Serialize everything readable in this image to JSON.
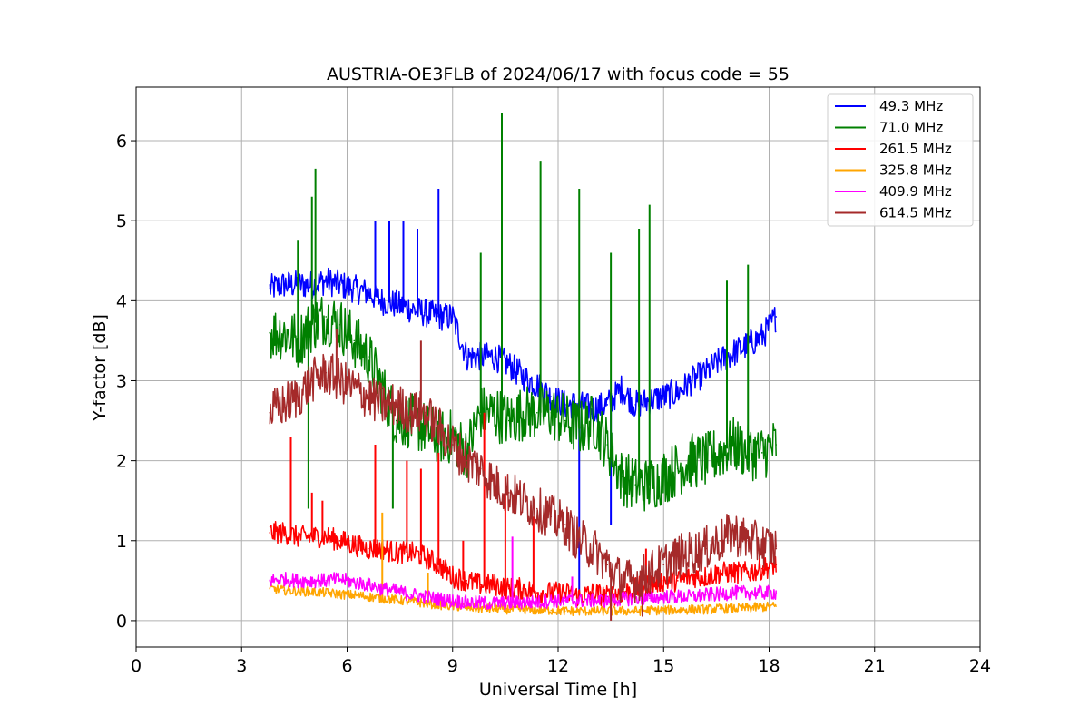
{
  "chart_data": {
    "type": "line",
    "title": "AUSTRIA-OE3FLB of 2024/06/17 with focus code = 55",
    "xlabel": "Universal Time [h]",
    "ylabel": "Y-factor [dB]",
    "xlim": [
      0,
      24
    ],
    "ylim": [
      -0.33,
      6.67
    ],
    "xticks": [
      0,
      3,
      6,
      9,
      12,
      15,
      18,
      21,
      24
    ],
    "yticks": [
      0,
      1,
      2,
      3,
      4,
      5,
      6
    ],
    "grid": true,
    "legend_position": "top-right",
    "series": [
      {
        "name": " 49.3 MHz",
        "color": "#0000ff",
        "x": [
          3.8,
          4.2,
          4.6,
          5.0,
          5.4,
          5.8,
          6.2,
          6.6,
          7.0,
          7.4,
          7.8,
          8.2,
          8.6,
          9.0,
          9.4,
          9.8,
          10.2,
          10.6,
          11.0,
          11.4,
          11.8,
          12.2,
          12.6,
          13.0,
          13.4,
          13.8,
          14.2,
          14.6,
          15.0,
          15.4,
          15.8,
          16.2,
          16.6,
          17.0,
          17.4,
          17.8,
          18.2
        ],
        "y": [
          4.15,
          4.2,
          4.2,
          4.2,
          4.25,
          4.2,
          4.15,
          4.1,
          4.0,
          3.95,
          3.9,
          3.85,
          3.8,
          3.8,
          3.3,
          3.3,
          3.3,
          3.2,
          3.05,
          2.95,
          2.8,
          2.7,
          2.7,
          2.65,
          2.7,
          2.9,
          2.7,
          2.75,
          2.8,
          2.85,
          3.0,
          3.1,
          3.25,
          3.35,
          3.45,
          3.55,
          3.8
        ],
        "spikes": [
          [
            6.8,
            5.0
          ],
          [
            7.2,
            5.0
          ],
          [
            7.6,
            5.0
          ],
          [
            8.0,
            4.9
          ],
          [
            8.6,
            5.4
          ],
          [
            12.6,
            0.3
          ],
          [
            13.5,
            1.2
          ]
        ]
      },
      {
        "name": " 71.0 MHz",
        "color": "#008000",
        "x": [
          3.8,
          4.2,
          4.6,
          5.0,
          5.4,
          5.8,
          6.2,
          6.6,
          7.0,
          7.4,
          7.8,
          8.2,
          8.6,
          9.0,
          9.4,
          9.8,
          10.2,
          10.6,
          11.0,
          11.4,
          11.8,
          12.2,
          12.6,
          13.0,
          13.4,
          13.8,
          14.2,
          14.6,
          15.0,
          15.4,
          15.8,
          16.2,
          16.6,
          17.0,
          17.4,
          17.8,
          18.2
        ],
        "y": [
          3.6,
          3.6,
          3.5,
          3.7,
          3.8,
          3.7,
          3.5,
          3.3,
          2.9,
          2.5,
          2.5,
          2.4,
          2.3,
          2.3,
          2.1,
          2.6,
          2.6,
          2.5,
          2.6,
          2.6,
          2.6,
          2.5,
          2.4,
          2.5,
          2.2,
          1.8,
          1.7,
          1.7,
          1.8,
          1.9,
          2.0,
          2.0,
          2.1,
          2.2,
          2.1,
          2.1,
          2.2
        ],
        "spikes": [
          [
            5.1,
            5.65
          ],
          [
            5.0,
            5.3
          ],
          [
            4.6,
            4.75
          ],
          [
            10.4,
            6.35
          ],
          [
            11.5,
            5.75
          ],
          [
            12.6,
            5.4
          ],
          [
            9.8,
            4.6
          ],
          [
            13.5,
            4.6
          ],
          [
            14.3,
            4.9
          ],
          [
            14.6,
            5.2
          ],
          [
            17.4,
            4.45
          ],
          [
            16.8,
            4.25
          ],
          [
            7.3,
            1.4
          ],
          [
            4.9,
            1.4
          ]
        ]
      },
      {
        "name": "261.5 MHz",
        "color": "#ff0000",
        "x": [
          3.8,
          4.2,
          4.6,
          5.0,
          5.4,
          5.8,
          6.2,
          6.6,
          7.0,
          7.4,
          7.8,
          8.2,
          8.6,
          9.0,
          9.4,
          9.8,
          10.2,
          10.6,
          11.0,
          11.4,
          11.8,
          12.2,
          12.6,
          13.0,
          13.4,
          13.8,
          14.2,
          14.6,
          15.0,
          15.4,
          15.8,
          16.2,
          16.6,
          17.0,
          17.4,
          17.8,
          18.2
        ],
        "y": [
          1.1,
          1.1,
          1.05,
          1.05,
          1.05,
          1.0,
          0.95,
          0.9,
          0.9,
          0.85,
          0.85,
          0.8,
          0.7,
          0.55,
          0.5,
          0.45,
          0.45,
          0.4,
          0.4,
          0.35,
          0.35,
          0.35,
          0.3,
          0.35,
          0.3,
          0.35,
          0.4,
          0.45,
          0.5,
          0.5,
          0.55,
          0.55,
          0.6,
          0.6,
          0.6,
          0.65,
          0.7
        ],
        "spikes": [
          [
            4.4,
            2.3
          ],
          [
            5.0,
            1.6
          ],
          [
            5.3,
            1.5
          ],
          [
            6.8,
            2.2
          ],
          [
            7.7,
            2.0
          ],
          [
            8.1,
            1.9
          ],
          [
            8.6,
            2.1
          ],
          [
            9.3,
            1.0
          ],
          [
            9.9,
            2.6
          ],
          [
            10.5,
            1.8
          ],
          [
            11.3,
            1.3
          ],
          [
            14.5,
            0.9
          ]
        ]
      },
      {
        "name": "325.8 MHz",
        "color": "#ffa500",
        "x": [
          3.8,
          4.2,
          4.6,
          5.0,
          5.4,
          5.8,
          6.2,
          6.6,
          7.0,
          7.4,
          7.8,
          8.2,
          8.6,
          9.0,
          9.4,
          9.8,
          10.2,
          10.6,
          11.0,
          11.4,
          11.8,
          12.2,
          12.6,
          13.0,
          13.4,
          13.8,
          14.2,
          14.6,
          15.0,
          15.4,
          15.8,
          16.2,
          16.6,
          17.0,
          17.4,
          17.8,
          18.2
        ],
        "y": [
          0.4,
          0.38,
          0.37,
          0.36,
          0.35,
          0.33,
          0.32,
          0.3,
          0.28,
          0.26,
          0.24,
          0.22,
          0.2,
          0.18,
          0.17,
          0.15,
          0.15,
          0.14,
          0.14,
          0.13,
          0.13,
          0.12,
          0.12,
          0.12,
          0.12,
          0.12,
          0.12,
          0.13,
          0.13,
          0.13,
          0.14,
          0.14,
          0.15,
          0.15,
          0.16,
          0.17,
          0.18
        ],
        "spikes": [
          [
            7.0,
            1.35
          ],
          [
            8.3,
            0.6
          ]
        ]
      },
      {
        "name": "409.9 MHz",
        "color": "#ff00ff",
        "x": [
          3.8,
          4.2,
          4.6,
          5.0,
          5.4,
          5.8,
          6.2,
          6.6,
          7.0,
          7.4,
          7.8,
          8.2,
          8.6,
          9.0,
          9.4,
          9.8,
          10.2,
          10.6,
          11.0,
          11.4,
          11.8,
          12.2,
          12.6,
          13.0,
          13.4,
          13.8,
          14.2,
          14.6,
          15.0,
          15.4,
          15.8,
          16.2,
          16.6,
          17.0,
          17.4,
          17.8,
          18.2
        ],
        "y": [
          0.5,
          0.52,
          0.5,
          0.5,
          0.5,
          0.52,
          0.48,
          0.45,
          0.4,
          0.37,
          0.33,
          0.3,
          0.27,
          0.25,
          0.23,
          0.22,
          0.22,
          0.22,
          0.23,
          0.23,
          0.25,
          0.25,
          0.25,
          0.25,
          0.25,
          0.27,
          0.28,
          0.28,
          0.3,
          0.3,
          0.3,
          0.32,
          0.33,
          0.35,
          0.35,
          0.35,
          0.35
        ],
        "spikes": [
          [
            10.7,
            1.05
          ],
          [
            12.4,
            0.55
          ]
        ]
      },
      {
        "name": "614.5 MHz",
        "color": "#a52a2a",
        "x": [
          3.8,
          4.2,
          4.6,
          5.0,
          5.4,
          5.8,
          6.2,
          6.6,
          7.0,
          7.4,
          7.8,
          8.2,
          8.6,
          9.0,
          9.4,
          9.8,
          10.2,
          10.6,
          11.0,
          11.4,
          11.8,
          12.2,
          12.6,
          13.0,
          13.4,
          13.8,
          14.2,
          14.6,
          15.0,
          15.4,
          15.8,
          16.2,
          16.6,
          17.0,
          17.4,
          17.8,
          18.2
        ],
        "y": [
          2.6,
          2.7,
          2.8,
          3.0,
          3.1,
          3.0,
          2.9,
          2.8,
          2.7,
          2.7,
          2.6,
          2.6,
          2.4,
          2.2,
          2.0,
          1.9,
          1.7,
          1.6,
          1.5,
          1.4,
          1.3,
          1.2,
          1.0,
          0.9,
          0.7,
          0.5,
          0.5,
          0.6,
          0.7,
          0.8,
          0.85,
          0.9,
          1.0,
          1.1,
          1.0,
          0.95,
          0.9
        ],
        "spikes": [
          [
            5.7,
            3.65
          ],
          [
            8.1,
            3.5
          ],
          [
            13.5,
            0.0
          ],
          [
            14.4,
            0.05
          ]
        ]
      }
    ]
  }
}
